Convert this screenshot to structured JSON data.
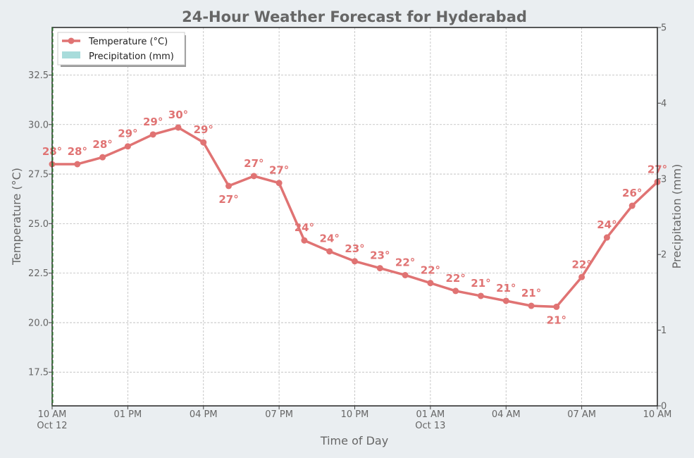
{
  "chart_data": {
    "type": "line",
    "title": "24-Hour Weather Forecast for Hyderabad",
    "xlabel": "Time of Day",
    "ylabel": "Temperature (°C)",
    "ylabel_right": "Precipitation (mm)",
    "ylim": [
      15.8,
      34.9
    ],
    "ylim_right": [
      0,
      5
    ],
    "yticks": [
      "17.5",
      "20.0",
      "22.5",
      "25.0",
      "27.5",
      "30.0",
      "32.5"
    ],
    "yticks_right": [
      "0",
      "1",
      "2",
      "3",
      "4",
      "5"
    ],
    "x_hours": [
      0,
      1,
      2,
      3,
      4,
      5,
      6,
      7,
      8,
      9,
      10,
      11,
      12,
      13,
      14,
      15,
      16,
      17,
      18,
      19,
      20,
      21,
      22,
      23,
      24
    ],
    "xticks": [
      {
        "hour": 0,
        "line1": "10 AM",
        "line2": "Oct 12"
      },
      {
        "hour": 3,
        "line1": "01 PM",
        "line2": ""
      },
      {
        "hour": 6,
        "line1": "04 PM",
        "line2": ""
      },
      {
        "hour": 9,
        "line1": "07 PM",
        "line2": ""
      },
      {
        "hour": 12,
        "line1": "10 PM",
        "line2": ""
      },
      {
        "hour": 15,
        "line1": "01 AM",
        "line2": "Oct 13"
      },
      {
        "hour": 18,
        "line1": "04 AM",
        "line2": ""
      },
      {
        "hour": 21,
        "line1": "07 AM",
        "line2": ""
      },
      {
        "hour": 24,
        "line1": "10 AM",
        "line2": ""
      }
    ],
    "series": [
      {
        "name": "Temperature (°C)",
        "color": "#e07373",
        "values": [
          28.0,
          28.0,
          28.35,
          28.9,
          29.5,
          29.85,
          29.1,
          26.9,
          27.4,
          27.05,
          24.15,
          23.6,
          23.1,
          22.75,
          22.4,
          22.0,
          21.6,
          21.35,
          21.1,
          20.85,
          20.8,
          22.3,
          24.3,
          25.9,
          27.1
        ],
        "labels": [
          "28°",
          "28°",
          "28°",
          "29°",
          "29°",
          "30°",
          "29°",
          "27°",
          "27°",
          "27°",
          "24°",
          "24°",
          "23°",
          "23°",
          "22°",
          "22°",
          "22°",
          "21°",
          "21°",
          "21°",
          "21°",
          "22°",
          "24°",
          "26°",
          "27°"
        ]
      },
      {
        "name": "Precipitation (mm)",
        "color": "#a8dcdb",
        "values": [
          0,
          0,
          0,
          0,
          0,
          0,
          0,
          0,
          0,
          0,
          0,
          0,
          0,
          0,
          0,
          0,
          0,
          0,
          0,
          0,
          0,
          0,
          0,
          0,
          0
        ]
      }
    ],
    "legend_position": "top-left",
    "grid": true
  }
}
